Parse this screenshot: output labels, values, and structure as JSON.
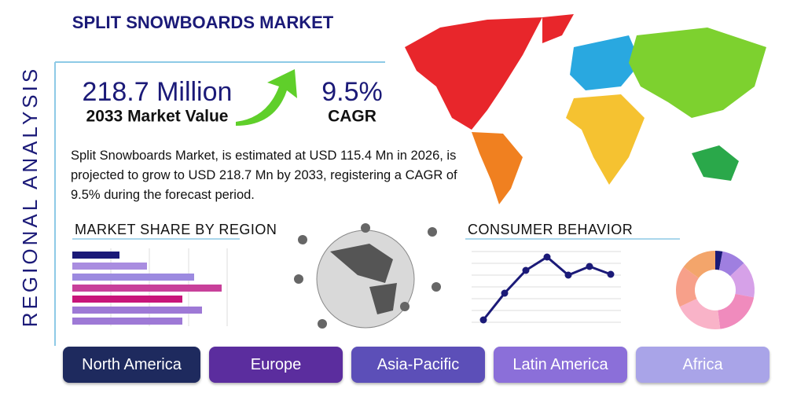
{
  "header": {
    "title": "SPLIT SNOWBOARDS MARKET",
    "side_title": "REGIONAL ANALYSIS"
  },
  "stats": [
    {
      "value": "218.7 Million",
      "label": "2033 Market Value"
    },
    {
      "value": "9.5%",
      "label": "CAGR"
    }
  ],
  "summary": "Split Snowboards Market, is estimated at USD 115.4 Mn in 2026, is projected to grow to USD 218.7 Mn by 2033, registering a CAGR of 9.5% during the forecast period.",
  "market_share": {
    "title": "MARKET SHARE BY REGION",
    "values": [
      6,
      9.5,
      15.5,
      19,
      14,
      16.5,
      14
    ],
    "colors": [
      "#1b1a78",
      "#a98de0",
      "#9c8ae0",
      "#c8409a",
      "#c8157a",
      "#9e79d6",
      "#9e79d6"
    ]
  },
  "consumer_behavior": {
    "title": "CONSUMER BEHAVIOR",
    "values": [
      8,
      42,
      71,
      88,
      65,
      76,
      66
    ],
    "color": "#1b1a78"
  },
  "donut": {
    "values": [
      3,
      10,
      15,
      20,
      20,
      17,
      15
    ],
    "colors": [
      "#1b1a78",
      "#9f7fe0",
      "#d6a1e8",
      "#f08bbd",
      "#f9b3c8",
      "#f7a08a",
      "#f3a56b"
    ]
  },
  "regions": [
    "North America",
    "Europe",
    "Asia-Pacific",
    "Latin America",
    "Africa"
  ]
}
